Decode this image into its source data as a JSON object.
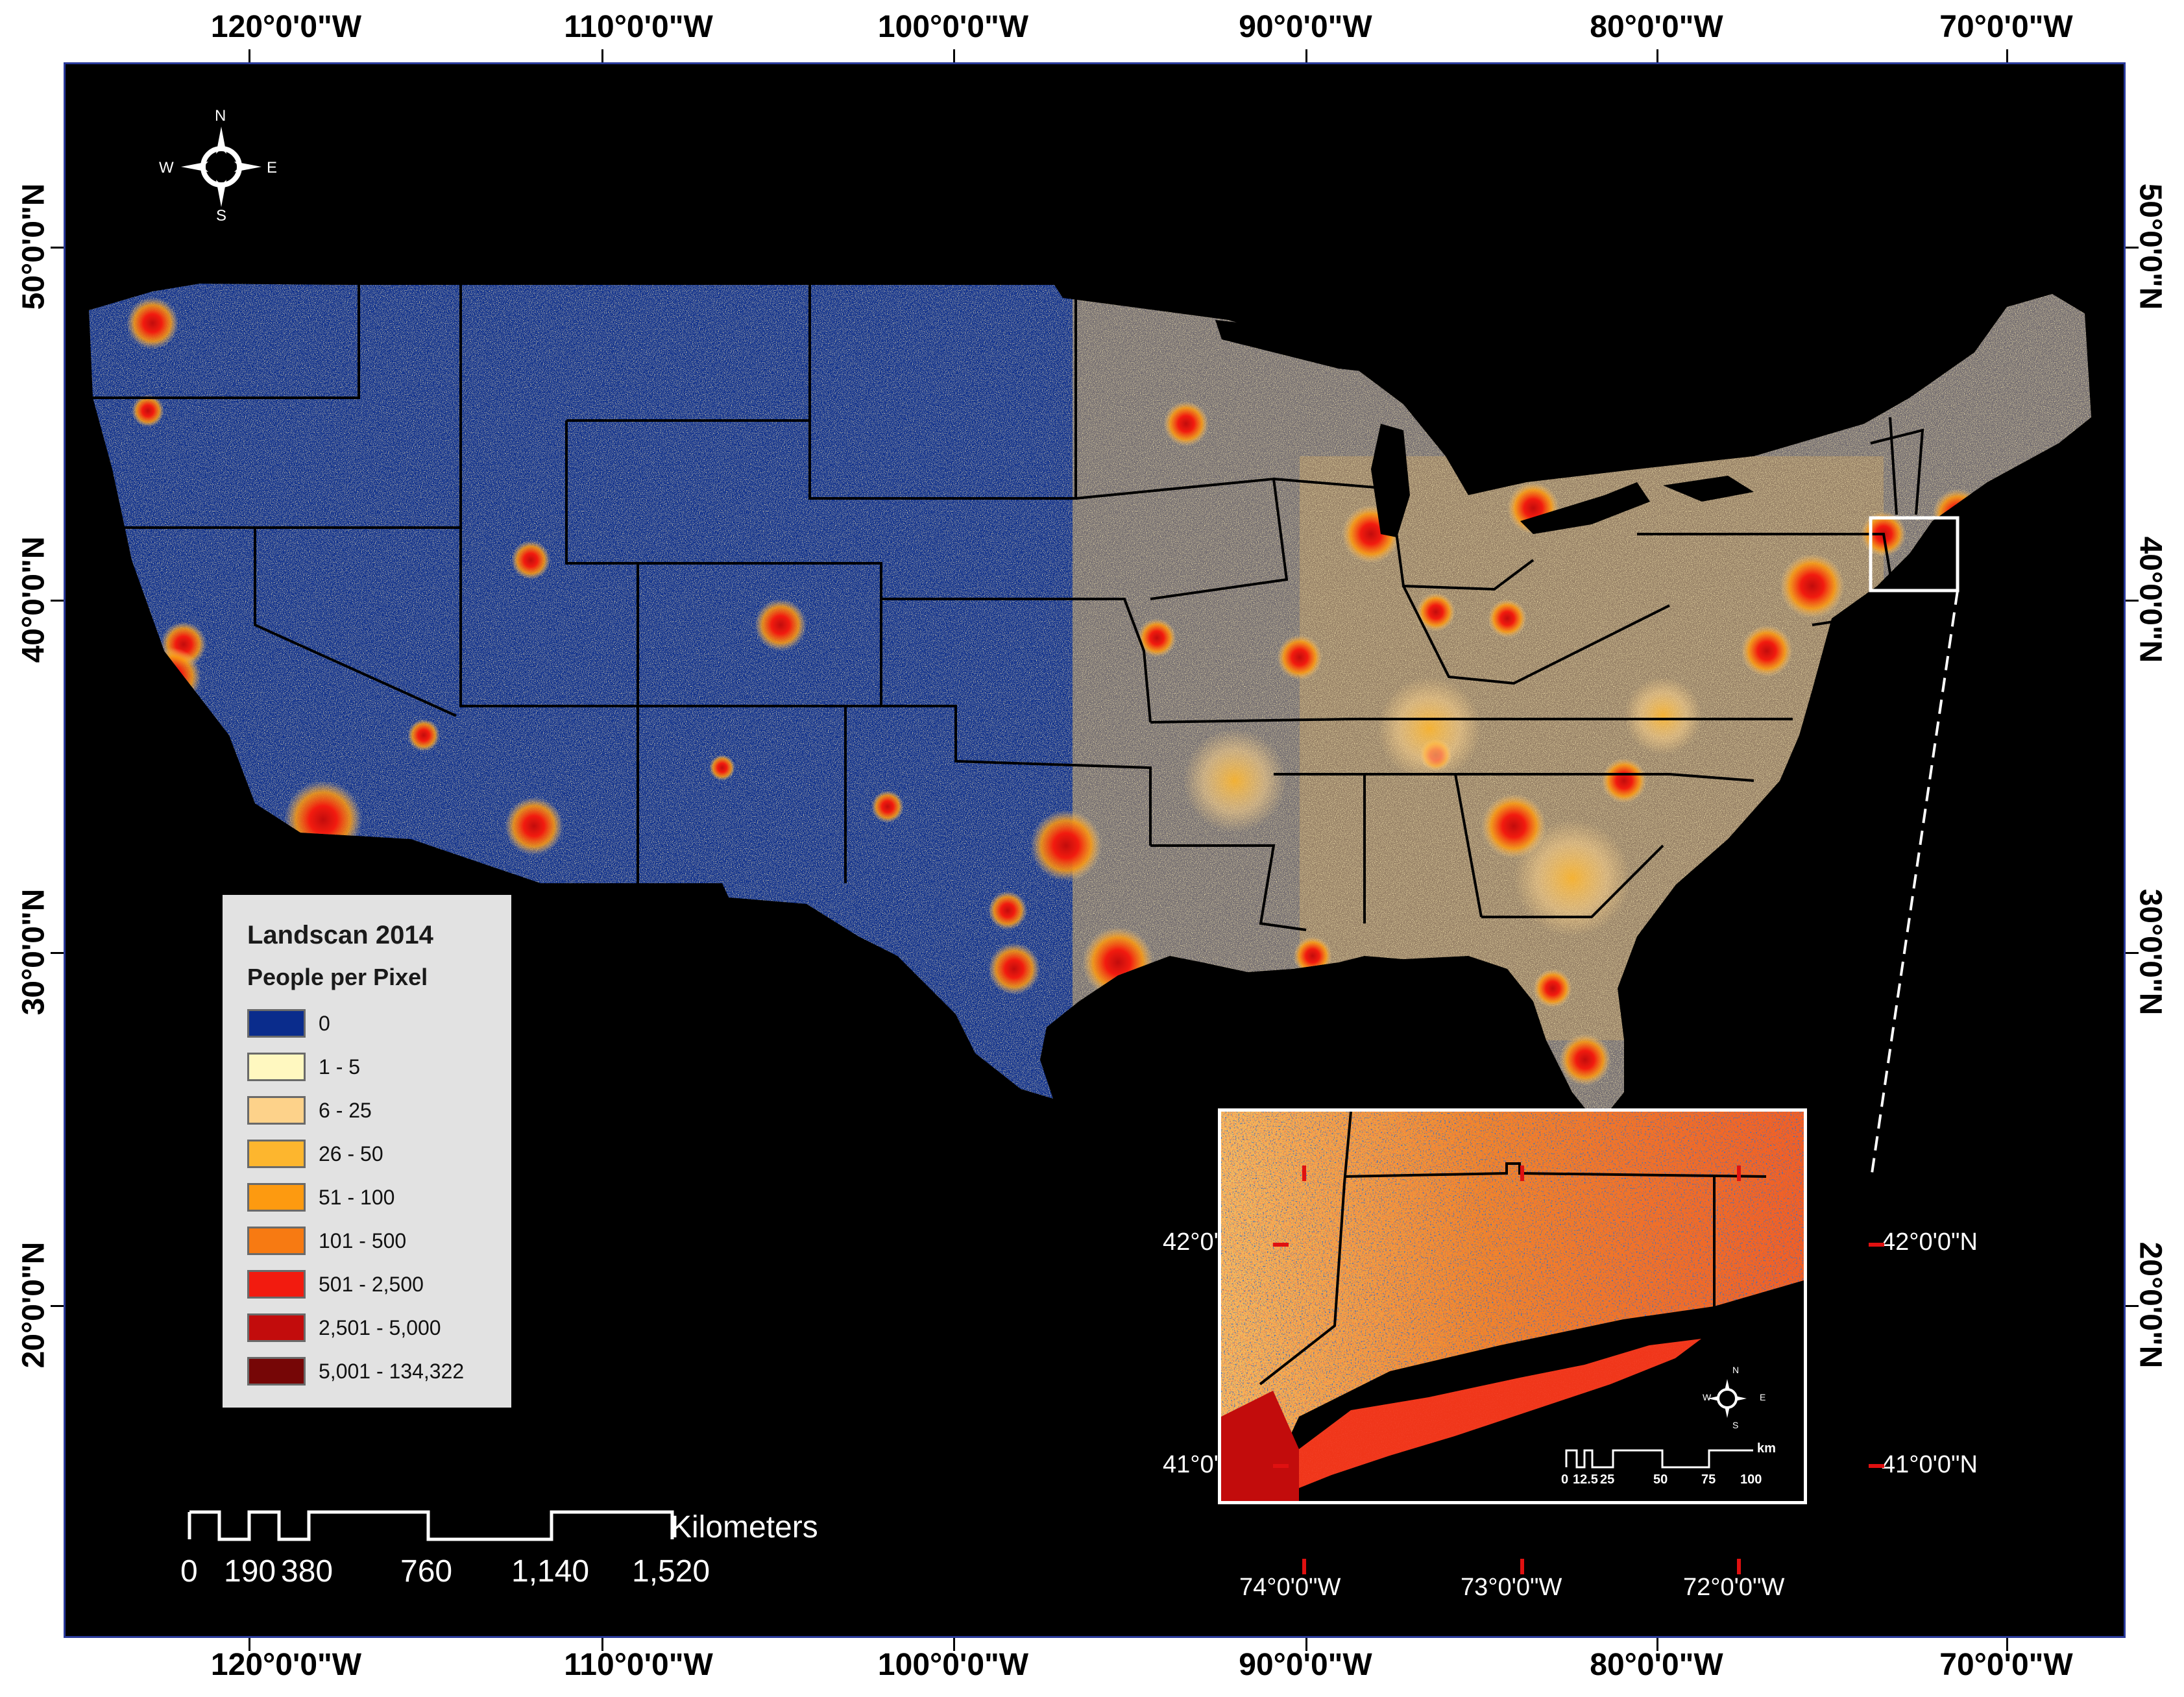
{
  "map": {
    "title": "Landscan 2014",
    "subtitle": "People per Pixel",
    "graticule": {
      "longitude_labels": [
        "120°0'0\"W",
        "110°0'0\"W",
        "100°0'0\"W",
        "90°0'0\"W",
        "80°0'0\"W",
        "70°0'0\"W"
      ],
      "latitude_labels": [
        "50°0'0\"N",
        "40°0'0\"N",
        "30°0'0\"N",
        "20°0'0\"N"
      ]
    },
    "colors": {
      "background": "#000000",
      "frame": "#2a3a9a",
      "zero": "#0a2c8c",
      "state_lines": "#000000"
    }
  },
  "legend": {
    "title": "Landscan 2014",
    "subtitle": "People per Pixel",
    "items": [
      {
        "label": "0",
        "color": "#0a2c8c"
      },
      {
        "label": "1 - 5",
        "color": "#fff8c0"
      },
      {
        "label": "6 - 25",
        "color": "#fdd28a"
      },
      {
        "label": "26 - 50",
        "color": "#fdb62e"
      },
      {
        "label": "51 - 100",
        "color": "#fd9a10"
      },
      {
        "label": "101 - 500",
        "color": "#f77a12"
      },
      {
        "label": "501 - 2,500",
        "color": "#f21b0f"
      },
      {
        "label": "2,501 - 5,000",
        "color": "#c20c0c"
      },
      {
        "label": "5,001 - 134,322",
        "color": "#760606"
      }
    ]
  },
  "scale_bar": {
    "unit": "Kilometers",
    "ticks": [
      "0",
      "190",
      "380",
      "760",
      "1,140",
      "1,520"
    ]
  },
  "compass": {
    "n": "N",
    "s": "S",
    "e": "E",
    "w": "W"
  },
  "inset": {
    "lon_labels": [
      "74°0'0\"W",
      "73°0'0\"W",
      "72°0'0\"W"
    ],
    "lat_labels": [
      "42°0'0\"N",
      "41°0'0\"N"
    ],
    "scale_unit": "km",
    "scale_ticks": [
      "0",
      "12.5",
      "25",
      "50",
      "75",
      "100"
    ],
    "compass": {
      "n": "N",
      "s": "S",
      "e": "E",
      "w": "W"
    }
  }
}
